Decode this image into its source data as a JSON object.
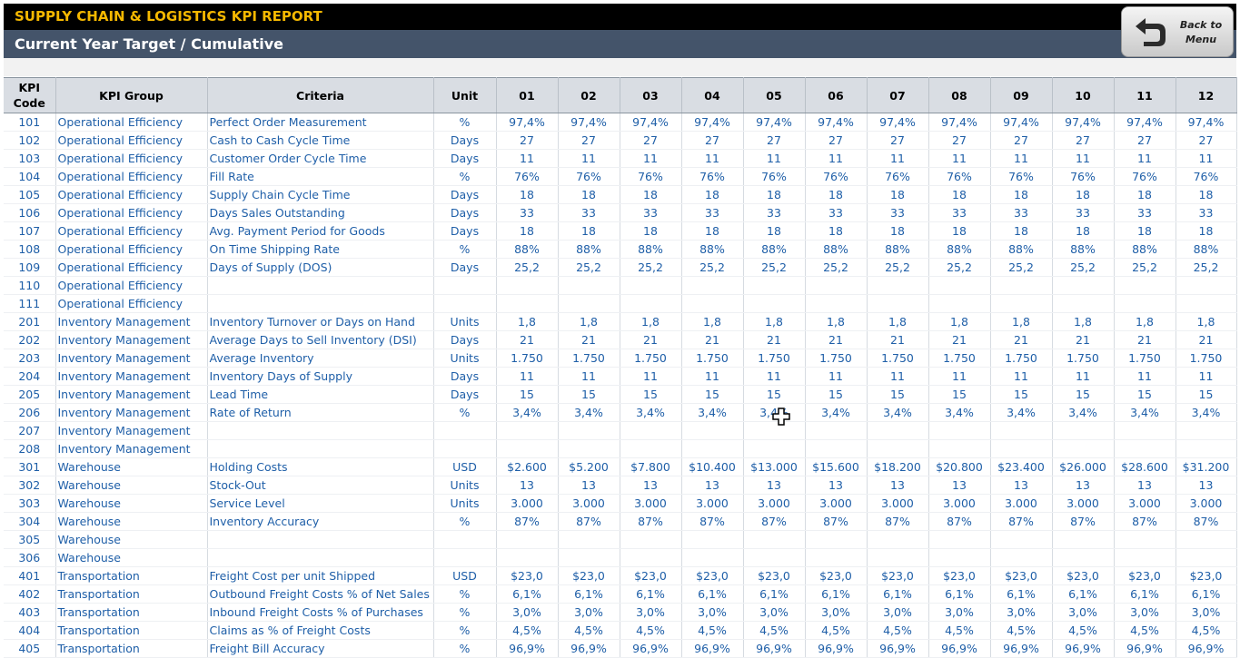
{
  "header": {
    "title": "SUPPLY CHAIN & LOGISTICS KPI REPORT",
    "subtitle": "Current Year Target / Cumulative",
    "back_button": "Back to\nMenu",
    "title_color": "#f5b800"
  },
  "icons": {
    "back": "back-arrow-icon",
    "cursor": "cross-cursor-icon"
  },
  "table": {
    "columns": [
      "KPI\nCode",
      "KPI Group",
      "Criteria",
      "Unit",
      "01",
      "02",
      "03",
      "04",
      "05",
      "06",
      "07",
      "08",
      "09",
      "10",
      "11",
      "12"
    ],
    "rows": [
      {
        "code": "101",
        "group": "Operational Efficiency",
        "criteria": "Perfect Order Measurement",
        "unit": "%",
        "values": [
          "97,4%",
          "97,4%",
          "97,4%",
          "97,4%",
          "97,4%",
          "97,4%",
          "97,4%",
          "97,4%",
          "97,4%",
          "97,4%",
          "97,4%",
          "97,4%"
        ]
      },
      {
        "code": "102",
        "group": "Operational Efficiency",
        "criteria": "Cash to Cash Cycle Time",
        "unit": "Days",
        "values": [
          "27",
          "27",
          "27",
          "27",
          "27",
          "27",
          "27",
          "27",
          "27",
          "27",
          "27",
          "27"
        ]
      },
      {
        "code": "103",
        "group": "Operational Efficiency",
        "criteria": "Customer Order Cycle Time",
        "unit": "Days",
        "values": [
          "11",
          "11",
          "11",
          "11",
          "11",
          "11",
          "11",
          "11",
          "11",
          "11",
          "11",
          "11"
        ]
      },
      {
        "code": "104",
        "group": "Operational Efficiency",
        "criteria": "Fill Rate",
        "unit": "%",
        "values": [
          "76%",
          "76%",
          "76%",
          "76%",
          "76%",
          "76%",
          "76%",
          "76%",
          "76%",
          "76%",
          "76%",
          "76%"
        ]
      },
      {
        "code": "105",
        "group": "Operational Efficiency",
        "criteria": "Supply Chain Cycle Time",
        "unit": "Days",
        "values": [
          "18",
          "18",
          "18",
          "18",
          "18",
          "18",
          "18",
          "18",
          "18",
          "18",
          "18",
          "18"
        ]
      },
      {
        "code": "106",
        "group": "Operational Efficiency",
        "criteria": "Days Sales Outstanding",
        "unit": "Days",
        "values": [
          "33",
          "33",
          "33",
          "33",
          "33",
          "33",
          "33",
          "33",
          "33",
          "33",
          "33",
          "33"
        ]
      },
      {
        "code": "107",
        "group": "Operational Efficiency",
        "criteria": "Avg. Payment Period for Goods",
        "unit": "Days",
        "values": [
          "18",
          "18",
          "18",
          "18",
          "18",
          "18",
          "18",
          "18",
          "18",
          "18",
          "18",
          "18"
        ]
      },
      {
        "code": "108",
        "group": "Operational Efficiency",
        "criteria": "On Time Shipping Rate",
        "unit": "%",
        "values": [
          "88%",
          "88%",
          "88%",
          "88%",
          "88%",
          "88%",
          "88%",
          "88%",
          "88%",
          "88%",
          "88%",
          "88%"
        ]
      },
      {
        "code": "109",
        "group": "Operational Efficiency",
        "criteria": "Days of Supply (DOS)",
        "unit": "Days",
        "values": [
          "25,2",
          "25,2",
          "25,2",
          "25,2",
          "25,2",
          "25,2",
          "25,2",
          "25,2",
          "25,2",
          "25,2",
          "25,2",
          "25,2"
        ]
      },
      {
        "code": "110",
        "group": "Operational Efficiency",
        "criteria": "",
        "unit": "",
        "values": [
          "",
          "",
          "",
          "",
          "",
          "",
          "",
          "",
          "",
          "",
          "",
          ""
        ]
      },
      {
        "code": "111",
        "group": "Operational Efficiency",
        "criteria": "",
        "unit": "",
        "values": [
          "",
          "",
          "",
          "",
          "",
          "",
          "",
          "",
          "",
          "",
          "",
          ""
        ]
      },
      {
        "code": "201",
        "group": "Inventory Management",
        "criteria": "Inventory Turnover or Days on Hand",
        "unit": "Units",
        "values": [
          "1,8",
          "1,8",
          "1,8",
          "1,8",
          "1,8",
          "1,8",
          "1,8",
          "1,8",
          "1,8",
          "1,8",
          "1,8",
          "1,8"
        ]
      },
      {
        "code": "202",
        "group": "Inventory Management",
        "criteria": "Average Days to Sell Inventory (DSI)",
        "unit": "Days",
        "values": [
          "21",
          "21",
          "21",
          "21",
          "21",
          "21",
          "21",
          "21",
          "21",
          "21",
          "21",
          "21"
        ]
      },
      {
        "code": "203",
        "group": "Inventory Management",
        "criteria": "Average Inventory",
        "unit": "Units",
        "values": [
          "1.750",
          "1.750",
          "1.750",
          "1.750",
          "1.750",
          "1.750",
          "1.750",
          "1.750",
          "1.750",
          "1.750",
          "1.750",
          "1.750"
        ]
      },
      {
        "code": "204",
        "group": "Inventory Management",
        "criteria": "Inventory Days of Supply",
        "unit": "Days",
        "values": [
          "11",
          "11",
          "11",
          "11",
          "11",
          "11",
          "11",
          "11",
          "11",
          "11",
          "11",
          "11"
        ]
      },
      {
        "code": "205",
        "group": "Inventory Management",
        "criteria": "Lead Time",
        "unit": "Days",
        "values": [
          "15",
          "15",
          "15",
          "15",
          "15",
          "15",
          "15",
          "15",
          "15",
          "15",
          "15",
          "15"
        ]
      },
      {
        "code": "206",
        "group": "Inventory Management",
        "criteria": "Rate of Return",
        "unit": "%",
        "values": [
          "3,4%",
          "3,4%",
          "3,4%",
          "3,4%",
          "3,4%",
          "3,4%",
          "3,4%",
          "3,4%",
          "3,4%",
          "3,4%",
          "3,4%",
          "3,4%"
        ]
      },
      {
        "code": "207",
        "group": "Inventory Management",
        "criteria": "",
        "unit": "",
        "values": [
          "",
          "",
          "",
          "",
          "",
          "",
          "",
          "",
          "",
          "",
          "",
          ""
        ]
      },
      {
        "code": "208",
        "group": "Inventory Management",
        "criteria": "",
        "unit": "",
        "values": [
          "",
          "",
          "",
          "",
          "",
          "",
          "",
          "",
          "",
          "",
          "",
          ""
        ]
      },
      {
        "code": "301",
        "group": "Warehouse",
        "criteria": "Holding Costs",
        "unit": "USD",
        "values": [
          "$2.600",
          "$5.200",
          "$7.800",
          "$10.400",
          "$13.000",
          "$15.600",
          "$18.200",
          "$20.800",
          "$23.400",
          "$26.000",
          "$28.600",
          "$31.200"
        ]
      },
      {
        "code": "302",
        "group": "Warehouse",
        "criteria": "Stock-Out",
        "unit": "Units",
        "values": [
          "13",
          "13",
          "13",
          "13",
          "13",
          "13",
          "13",
          "13",
          "13",
          "13",
          "13",
          "13"
        ]
      },
      {
        "code": "303",
        "group": "Warehouse",
        "criteria": "Service Level",
        "unit": "Units",
        "values": [
          "3.000",
          "3.000",
          "3.000",
          "3.000",
          "3.000",
          "3.000",
          "3.000",
          "3.000",
          "3.000",
          "3.000",
          "3.000",
          "3.000"
        ]
      },
      {
        "code": "304",
        "group": "Warehouse",
        "criteria": "Inventory Accuracy",
        "unit": "%",
        "values": [
          "87%",
          "87%",
          "87%",
          "87%",
          "87%",
          "87%",
          "87%",
          "87%",
          "87%",
          "87%",
          "87%",
          "87%"
        ]
      },
      {
        "code": "305",
        "group": "Warehouse",
        "criteria": "",
        "unit": "",
        "values": [
          "",
          "",
          "",
          "",
          "",
          "",
          "",
          "",
          "",
          "",
          "",
          ""
        ]
      },
      {
        "code": "306",
        "group": "Warehouse",
        "criteria": "",
        "unit": "",
        "values": [
          "",
          "",
          "",
          "",
          "",
          "",
          "",
          "",
          "",
          "",
          "",
          ""
        ]
      },
      {
        "code": "401",
        "group": "Transportation",
        "criteria": "Freight Cost per unit Shipped",
        "unit": "USD",
        "values": [
          "$23,0",
          "$23,0",
          "$23,0",
          "$23,0",
          "$23,0",
          "$23,0",
          "$23,0",
          "$23,0",
          "$23,0",
          "$23,0",
          "$23,0",
          "$23,0"
        ]
      },
      {
        "code": "402",
        "group": "Transportation",
        "criteria": "Outbound Freight Costs % of Net Sales",
        "unit": "%",
        "values": [
          "6,1%",
          "6,1%",
          "6,1%",
          "6,1%",
          "6,1%",
          "6,1%",
          "6,1%",
          "6,1%",
          "6,1%",
          "6,1%",
          "6,1%",
          "6,1%"
        ]
      },
      {
        "code": "403",
        "group": "Transportation",
        "criteria": "Inbound Freight Costs % of Purchases",
        "unit": "%",
        "values": [
          "3,0%",
          "3,0%",
          "3,0%",
          "3,0%",
          "3,0%",
          "3,0%",
          "3,0%",
          "3,0%",
          "3,0%",
          "3,0%",
          "3,0%",
          "3,0%"
        ]
      },
      {
        "code": "404",
        "group": "Transportation",
        "criteria": "Claims as % of Freight Costs",
        "unit": "%",
        "values": [
          "4,5%",
          "4,5%",
          "4,5%",
          "4,5%",
          "4,5%",
          "4,5%",
          "4,5%",
          "4,5%",
          "4,5%",
          "4,5%",
          "4,5%",
          "4,5%"
        ]
      },
      {
        "code": "405",
        "group": "Transportation",
        "criteria": "Freight Bill Accuracy",
        "unit": "%",
        "values": [
          "96,9%",
          "96,9%",
          "96,9%",
          "96,9%",
          "96,9%",
          "96,9%",
          "96,9%",
          "96,9%",
          "96,9%",
          "96,9%",
          "96,9%",
          "96,9%"
        ]
      }
    ]
  }
}
